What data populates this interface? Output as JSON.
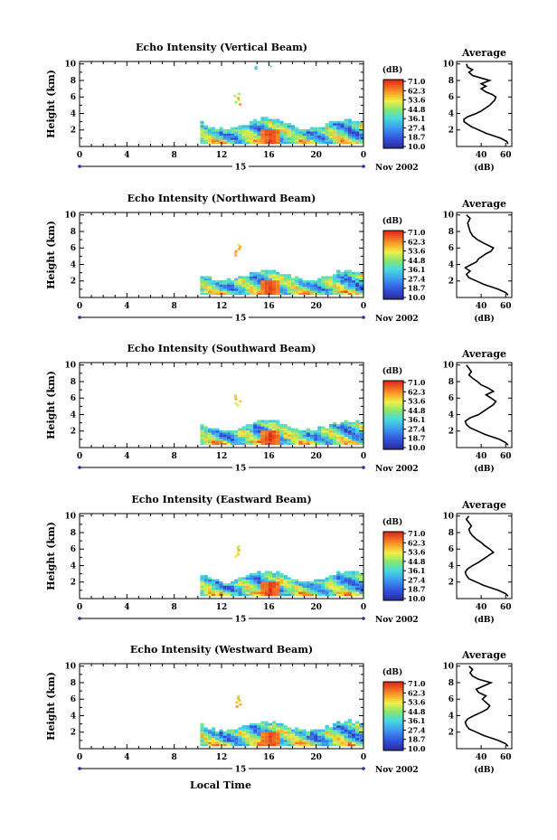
{
  "chart_data": {
    "type": "heatmap",
    "date_label": "Nov 2002",
    "day_label": "15",
    "xlabel": "Local Time",
    "ylabel": "Height (km)",
    "x_ticks": [
      "0",
      "4",
      "8",
      "12",
      "16",
      "20",
      "0"
    ],
    "xlim": [
      0,
      24
    ],
    "y_ticks": [
      "2",
      "4",
      "6",
      "8",
      "10"
    ],
    "ylim": [
      0,
      10.3
    ],
    "colorbar_unit": "(dB)",
    "colorbar_levels": [
      "71.0",
      "62.3",
      "53.6",
      "44.8",
      "36.1",
      "27.4",
      "18.7",
      "10.0"
    ],
    "colorbar_range": [
      10.0,
      71.0
    ],
    "average_title": "Average",
    "average_xlabel": "(dB)",
    "average_x_ticks": [
      "40",
      "60"
    ],
    "average_xlim": [
      20,
      65
    ],
    "average_y_ticks": [
      "2",
      "4",
      "6",
      "8",
      "10"
    ],
    "panels": [
      {
        "title": "Echo Intensity (Vertical Beam)",
        "average_profile": [
          [
            0.3,
            62
          ],
          [
            0.6,
            61
          ],
          [
            1.0,
            56
          ],
          [
            1.3,
            50
          ],
          [
            1.6,
            44
          ],
          [
            2.0,
            38
          ],
          [
            2.4,
            32
          ],
          [
            2.8,
            28
          ],
          [
            3.0,
            26
          ],
          [
            3.3,
            26
          ],
          [
            3.6,
            29
          ],
          [
            4.0,
            36
          ],
          [
            4.3,
            40
          ],
          [
            4.7,
            44
          ],
          [
            5.0,
            47
          ],
          [
            5.3,
            49
          ],
          [
            5.6,
            51
          ],
          [
            6.0,
            52
          ],
          [
            6.3,
            49
          ],
          [
            6.6,
            44
          ],
          [
            7.0,
            40
          ],
          [
            7.3,
            44
          ],
          [
            7.6,
            40
          ],
          [
            8.0,
            47
          ],
          [
            8.3,
            40
          ],
          [
            8.6,
            33
          ],
          [
            9.0,
            30
          ],
          [
            9.3,
            33
          ],
          [
            9.6,
            29
          ],
          [
            10.0,
            28
          ]
        ]
      },
      {
        "title": "Echo Intensity (Northward Beam)",
        "average_profile": [
          [
            0.3,
            62
          ],
          [
            0.6,
            60
          ],
          [
            1.0,
            54
          ],
          [
            1.3,
            48
          ],
          [
            1.6,
            42
          ],
          [
            2.0,
            36
          ],
          [
            2.4,
            30
          ],
          [
            2.8,
            28
          ],
          [
            3.2,
            31
          ],
          [
            3.6,
            27
          ],
          [
            4.0,
            32
          ],
          [
            4.3,
            36
          ],
          [
            4.7,
            38
          ],
          [
            5.0,
            41
          ],
          [
            5.3,
            44
          ],
          [
            5.6,
            48
          ],
          [
            6.0,
            50
          ],
          [
            6.3,
            46
          ],
          [
            6.6,
            42
          ],
          [
            7.0,
            37
          ],
          [
            7.5,
            33
          ],
          [
            8.0,
            31
          ],
          [
            9.0,
            29
          ],
          [
            9.6,
            31
          ],
          [
            10.0,
            28
          ]
        ]
      },
      {
        "title": "Echo Intensity (Southward Beam)",
        "average_profile": [
          [
            0.3,
            62
          ],
          [
            0.6,
            60
          ],
          [
            1.0,
            55
          ],
          [
            1.3,
            49
          ],
          [
            1.6,
            43
          ],
          [
            2.0,
            37
          ],
          [
            2.4,
            31
          ],
          [
            2.8,
            28
          ],
          [
            3.2,
            27
          ],
          [
            3.6,
            31
          ],
          [
            4.0,
            38
          ],
          [
            4.4,
            42
          ],
          [
            4.8,
            46
          ],
          [
            5.2,
            50
          ],
          [
            5.6,
            52
          ],
          [
            6.0,
            48
          ],
          [
            6.4,
            44
          ],
          [
            6.8,
            50
          ],
          [
            7.2,
            46
          ],
          [
            7.6,
            40
          ],
          [
            8.0,
            37
          ],
          [
            8.4,
            33
          ],
          [
            8.8,
            30
          ],
          [
            9.2,
            32
          ],
          [
            9.6,
            30
          ],
          [
            10.0,
            28
          ]
        ]
      },
      {
        "title": "Echo Intensity (Eastward Beam)",
        "average_profile": [
          [
            0.3,
            62
          ],
          [
            0.6,
            60
          ],
          [
            1.0,
            54
          ],
          [
            1.3,
            48
          ],
          [
            1.6,
            42
          ],
          [
            2.0,
            36
          ],
          [
            2.4,
            30
          ],
          [
            2.8,
            28
          ],
          [
            3.2,
            27
          ],
          [
            3.6,
            29
          ],
          [
            4.0,
            33
          ],
          [
            4.4,
            38
          ],
          [
            4.8,
            42
          ],
          [
            5.2,
            46
          ],
          [
            5.6,
            50
          ],
          [
            6.0,
            47
          ],
          [
            6.4,
            43
          ],
          [
            6.8,
            40
          ],
          [
            7.2,
            36
          ],
          [
            7.6,
            33
          ],
          [
            8.0,
            31
          ],
          [
            8.4,
            30
          ],
          [
            8.8,
            32
          ],
          [
            9.2,
            30
          ],
          [
            9.6,
            28
          ],
          [
            10.0,
            30
          ]
        ]
      },
      {
        "title": "Echo Intensity (Westward Beam)",
        "average_profile": [
          [
            0.3,
            62
          ],
          [
            0.6,
            60
          ],
          [
            1.0,
            54
          ],
          [
            1.3,
            48
          ],
          [
            1.6,
            42
          ],
          [
            2.0,
            36
          ],
          [
            2.4,
            30
          ],
          [
            2.8,
            28
          ],
          [
            3.2,
            27
          ],
          [
            3.6,
            29
          ],
          [
            4.0,
            34
          ],
          [
            4.4,
            40
          ],
          [
            4.8,
            45
          ],
          [
            5.2,
            47
          ],
          [
            5.6,
            44
          ],
          [
            6.0,
            41
          ],
          [
            6.4,
            44
          ],
          [
            6.8,
            38
          ],
          [
            7.2,
            36
          ],
          [
            7.6,
            42
          ],
          [
            8.0,
            48
          ],
          [
            8.4,
            38
          ],
          [
            8.8,
            33
          ],
          [
            9.2,
            31
          ],
          [
            9.6,
            33
          ],
          [
            10.0,
            30
          ]
        ]
      }
    ]
  }
}
